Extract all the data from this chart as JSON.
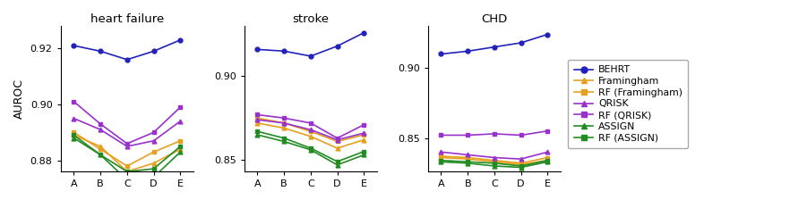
{
  "x_labels": [
    "A",
    "B",
    "C",
    "D",
    "E"
  ],
  "x": [
    0,
    1,
    2,
    3,
    4
  ],
  "titles": [
    "heart failure",
    "stroke",
    "CHD"
  ],
  "ylabel": "AUROC",
  "series": {
    "BEHRT": {
      "color": "#2222bb",
      "marker": "o",
      "heart_failure": [
        0.921,
        0.919,
        0.916,
        0.919,
        0.923
      ],
      "stroke": [
        0.916,
        0.915,
        0.912,
        0.918,
        0.926
      ],
      "CHD": [
        0.91,
        0.912,
        0.915,
        0.918,
        0.924
      ]
    },
    "Framingham": {
      "color": "#e6a020",
      "marker": "^",
      "heart_failure": [
        0.889,
        0.885,
        0.876,
        0.879,
        0.884
      ],
      "stroke": [
        0.872,
        0.869,
        0.864,
        0.857,
        0.862
      ],
      "CHD": [
        0.836,
        0.835,
        0.833,
        0.831,
        0.834
      ]
    },
    "RF (Framingham)": {
      "color": "#e6a020",
      "marker": "s",
      "heart_failure": [
        0.89,
        0.884,
        0.878,
        0.883,
        0.887
      ],
      "stroke": [
        0.875,
        0.872,
        0.867,
        0.861,
        0.865
      ],
      "CHD": [
        0.837,
        0.836,
        0.834,
        0.832,
        0.836
      ]
    },
    "QRISK": {
      "color": "#9932cc",
      "marker": "^",
      "heart_failure": [
        0.895,
        0.891,
        0.885,
        0.887,
        0.894
      ],
      "stroke": [
        0.874,
        0.872,
        0.868,
        0.862,
        0.866
      ],
      "CHD": [
        0.84,
        0.838,
        0.836,
        0.835,
        0.84
      ]
    },
    "RF (QRISK)": {
      "color": "#9932cc",
      "marker": "s",
      "heart_failure": [
        0.901,
        0.893,
        0.886,
        0.89,
        0.899
      ],
      "stroke": [
        0.877,
        0.875,
        0.872,
        0.863,
        0.871
      ],
      "CHD": [
        0.852,
        0.852,
        0.853,
        0.852,
        0.855
      ]
    },
    "ASSIGN": {
      "color": "#228B22",
      "marker": "^",
      "heart_failure": [
        0.888,
        0.882,
        0.873,
        0.874,
        0.883
      ],
      "stroke": [
        0.865,
        0.861,
        0.856,
        0.847,
        0.853
      ],
      "CHD": [
        0.833,
        0.832,
        0.83,
        0.829,
        0.833
      ]
    },
    "RF (ASSIGN)": {
      "color": "#228B22",
      "marker": "s",
      "heart_failure": [
        0.889,
        0.882,
        0.876,
        0.877,
        0.885
      ],
      "stroke": [
        0.867,
        0.863,
        0.857,
        0.849,
        0.855
      ],
      "CHD": [
        0.834,
        0.833,
        0.832,
        0.83,
        0.834
      ]
    }
  },
  "ylims": {
    "heart_failure": [
      0.876,
      0.928
    ],
    "stroke": [
      0.843,
      0.93
    ],
    "CHD": [
      0.826,
      0.93
    ]
  },
  "yticks": {
    "heart_failure": [
      0.88,
      0.9,
      0.92
    ],
    "stroke": [
      0.85,
      0.9
    ],
    "CHD": [
      0.85,
      0.9
    ]
  },
  "ytick_labels": {
    "heart_failure": [
      "0.88",
      "0.90",
      "0.92"
    ],
    "stroke": [
      "0.85",
      "0.90"
    ],
    "CHD": [
      "0.85",
      "0.90"
    ]
  },
  "figsize": [
    9.01,
    2.33
  ],
  "dpi": 100
}
